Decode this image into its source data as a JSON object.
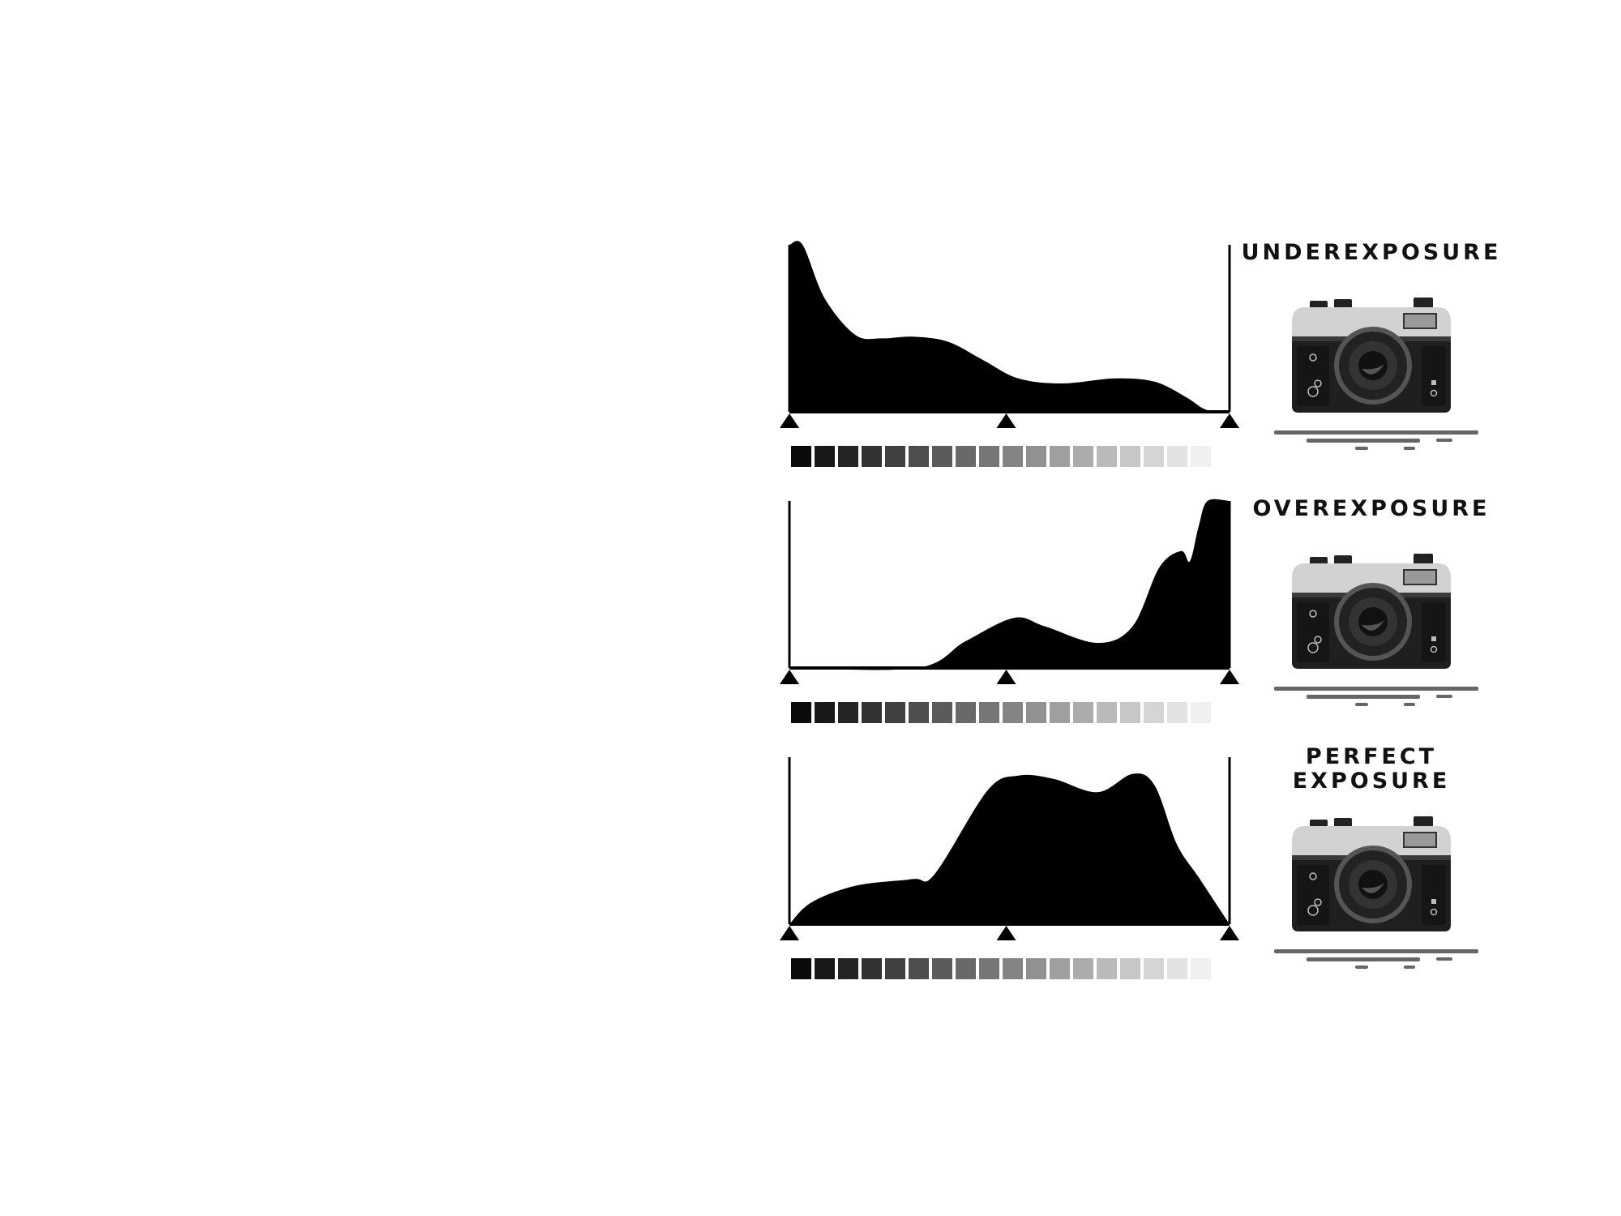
{
  "colors": {
    "background": "#ffffff",
    "histogram_fill": "#000000",
    "camera_body_top": "#d2d2d2",
    "camera_body_bottom": "#1f1f1f",
    "camera_lens": "#555555",
    "shadow": "#666666"
  },
  "icons": {
    "camera": "camera-icon",
    "marker": "triangle-up-marker"
  },
  "chart_data": [
    {
      "type": "area",
      "title": "",
      "xlabel": "",
      "ylabel": "",
      "xlim": [
        0,
        100
      ],
      "ylim": [
        0,
        100
      ],
      "grid": false,
      "legend": "none",
      "x": [
        0,
        3,
        8,
        15,
        21,
        28,
        36,
        44,
        52,
        62,
        74,
        83,
        90,
        94,
        97,
        100
      ],
      "values": [
        100,
        100,
        68,
        46,
        44,
        45,
        42,
        31,
        20,
        17,
        20,
        18,
        9,
        2,
        0,
        0
      ]
    },
    {
      "type": "area",
      "title": "",
      "xlabel": "",
      "ylabel": "",
      "xlim": [
        0,
        100
      ],
      "ylim": [
        0,
        100
      ],
      "grid": false,
      "legend": "none",
      "x": [
        0,
        29,
        40,
        51,
        58,
        70,
        78,
        84,
        89,
        91,
        93,
        95,
        100
      ],
      "values": [
        0,
        0,
        16,
        30,
        25,
        15,
        25,
        60,
        70,
        64,
        85,
        100,
        100
      ]
    },
    {
      "type": "area",
      "title": "",
      "xlabel": "",
      "ylabel": "",
      "xlim": [
        0,
        100
      ],
      "ylim": [
        0,
        100
      ],
      "grid": false,
      "legend": "none",
      "x": [
        0,
        5,
        15,
        28,
        33,
        45,
        52,
        60,
        70,
        78,
        83,
        88,
        93,
        100
      ],
      "values": [
        0,
        13,
        23,
        27,
        30,
        80,
        89,
        87,
        79,
        90,
        83,
        48,
        28,
        0
      ]
    }
  ],
  "panels": [
    {
      "label_lines": [
        "UNDEREXPOSURE"
      ]
    },
    {
      "label_lines": [
        "OVEREXPOSURE"
      ]
    },
    {
      "label_lines": [
        "PERFECT",
        "EXPOSURE"
      ]
    }
  ],
  "grayscale_steps": 18
}
